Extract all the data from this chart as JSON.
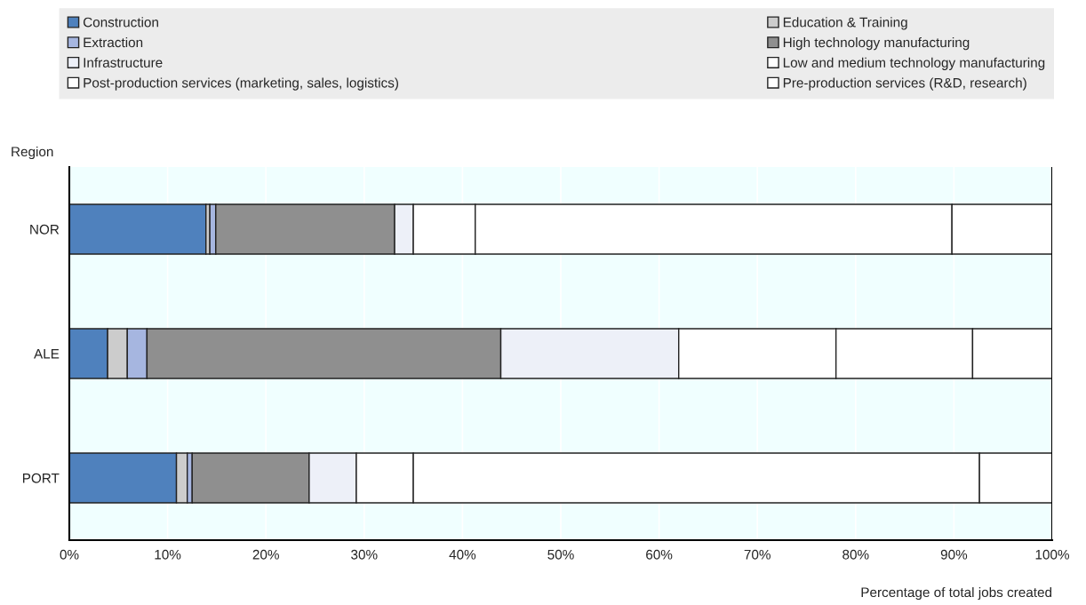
{
  "chart_data": {
    "type": "bar",
    "orientation": "horizontal",
    "stacked": true,
    "ylabel": "Region",
    "xlabel": "Percentage of total jobs created",
    "categories": [
      "NOR",
      "ALE",
      "PORT"
    ],
    "series": [
      {
        "name": "Construction",
        "color": "#4f81bd",
        "values": [
          13.9,
          3.9,
          10.9
        ]
      },
      {
        "name": "Education & Training",
        "color": "#cccccc",
        "values": [
          0.4,
          2.0,
          1.1
        ]
      },
      {
        "name": "Extraction",
        "color": "#a6b6e0",
        "values": [
          0.6,
          2.0,
          0.5
        ]
      },
      {
        "name": "High technology manufacturing",
        "color": "#8f8f8f",
        "values": [
          18.2,
          36.0,
          11.9
        ]
      },
      {
        "name": "Infrastructure",
        "color": "#edf0f8",
        "values": [
          1.9,
          18.1,
          4.8
        ]
      },
      {
        "name": "Low and medium technology manufacturing",
        "color": "#ffffff",
        "values": [
          6.3,
          16.0,
          5.8
        ]
      },
      {
        "name": "Post-production services (marketing, sales, logistics)",
        "color": "#ffffff",
        "values": [
          48.5,
          13.9,
          57.6
        ]
      },
      {
        "name": "Pre-production services (R&D, research)",
        "color": "#ffffff",
        "values": [
          10.2,
          8.1,
          7.4
        ]
      }
    ],
    "xlim": [
      0,
      100
    ],
    "xticks": [
      {
        "value": 0,
        "label": "0%"
      },
      {
        "value": 10,
        "label": "10%"
      },
      {
        "value": 20,
        "label": "20%"
      },
      {
        "value": 30,
        "label": "30%"
      },
      {
        "value": 40,
        "label": "40%"
      },
      {
        "value": 50,
        "label": "50%"
      },
      {
        "value": 60,
        "label": "60%"
      },
      {
        "value": 70,
        "label": "70%"
      },
      {
        "value": 80,
        "label": "80%"
      },
      {
        "value": 90,
        "label": "90%"
      },
      {
        "value": 100,
        "label": "100%"
      }
    ],
    "grid": "x",
    "legend": "top"
  }
}
